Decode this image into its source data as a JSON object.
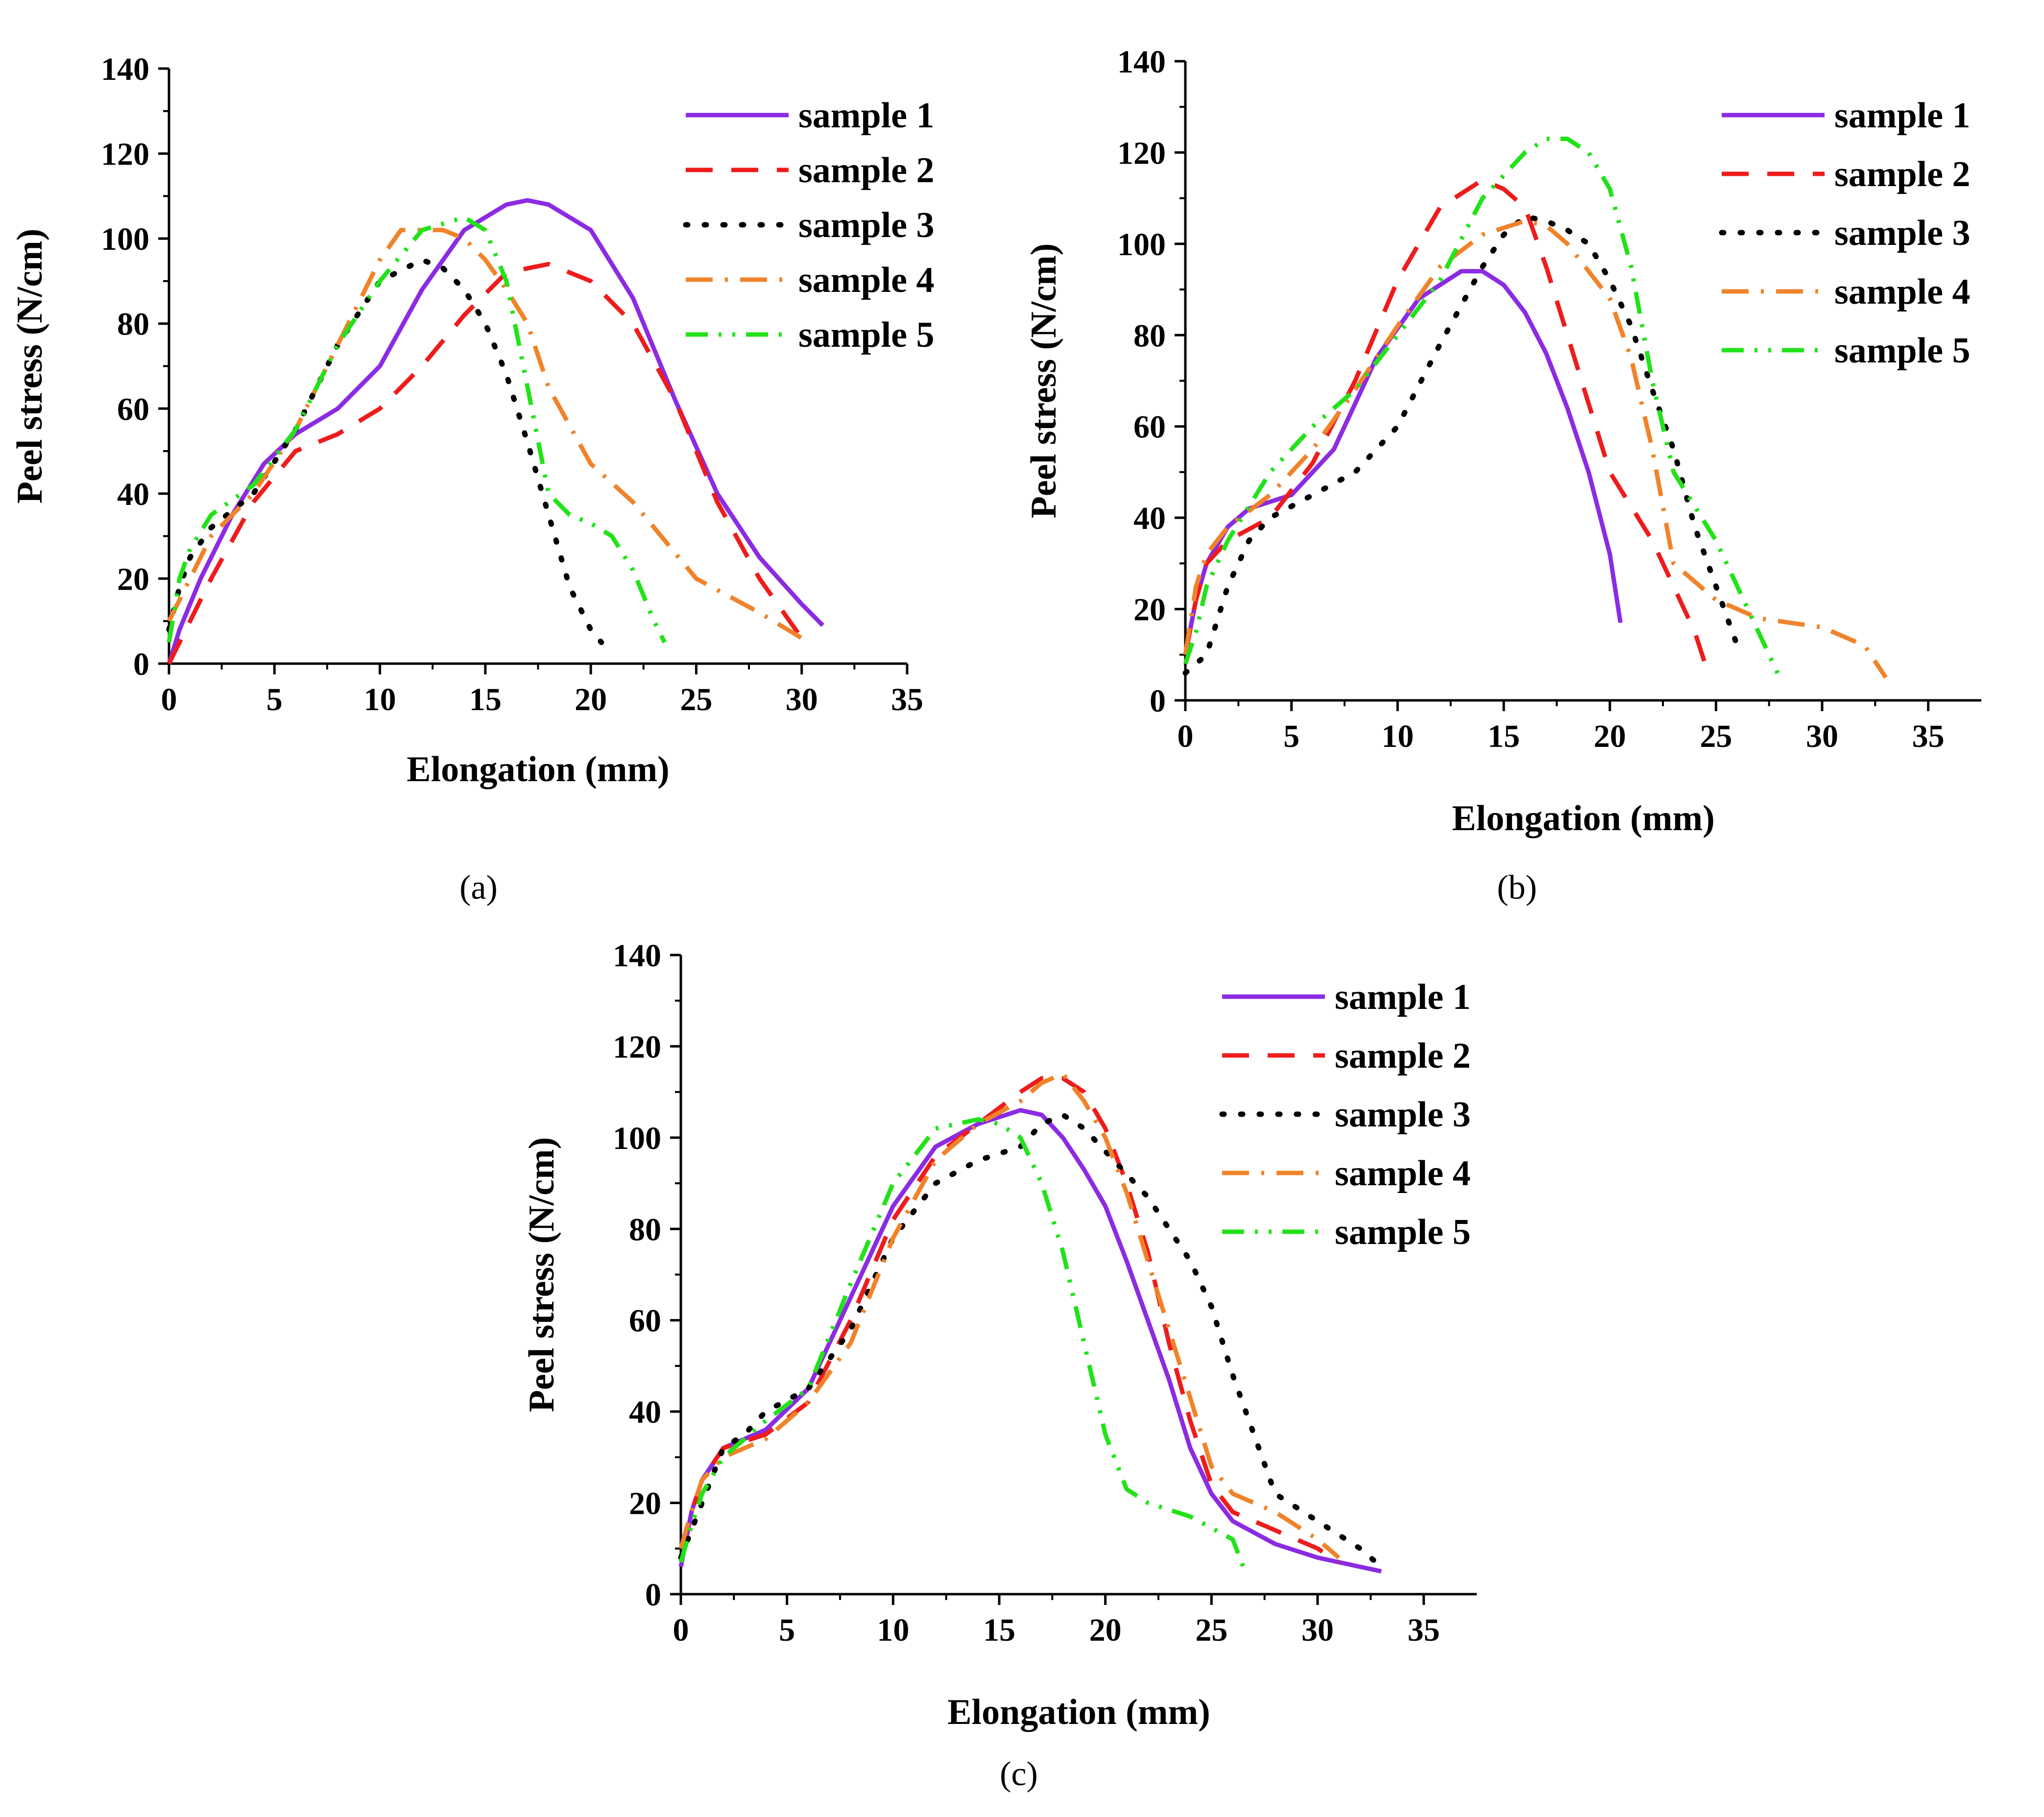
{
  "series_styles": [
    {
      "color": "#8b2be2",
      "dash": "none",
      "stroke_name": "solid"
    },
    {
      "color": "#ee1c1c",
      "dash": "dashed",
      "stroke_name": "dash"
    },
    {
      "color": "#000000",
      "dash": "dotted",
      "stroke_name": "dot"
    },
    {
      "color": "#f0832a",
      "dash": "dashdot",
      "stroke_name": "dash-dot"
    },
    {
      "color": "#22e21a",
      "dash": "dashdotdot",
      "stroke_name": "dash-dot-dot"
    }
  ],
  "chart_data": [
    {
      "type": "line",
      "panel_caption": "(a)",
      "xlabel": "Elongation (mm)",
      "ylabel": "Peel stress (N/cm)",
      "xlim": [
        0,
        35
      ],
      "ylim": [
        0,
        140
      ],
      "xticks": [
        0,
        5,
        10,
        15,
        20,
        25,
        30,
        35
      ],
      "yticks": [
        0,
        20,
        40,
        60,
        80,
        100,
        120,
        140
      ],
      "grid": false,
      "legend_position": "top-right",
      "series": [
        {
          "name": "sample 1",
          "x": [
            0,
            0.5,
            1.5,
            3,
            4.5,
            6,
            8,
            10,
            12,
            14,
            16,
            17,
            18,
            20,
            22,
            24,
            26,
            28,
            30,
            31
          ],
          "y": [
            0,
            8,
            20,
            35,
            47,
            54,
            60,
            70,
            88,
            102,
            108,
            109,
            108,
            102,
            86,
            62,
            40,
            25,
            14,
            9
          ]
        },
        {
          "name": "sample 2",
          "x": [
            0,
            1,
            2,
            4,
            6,
            8,
            10,
            12,
            14,
            16,
            18,
            20,
            22,
            24,
            26,
            28,
            30
          ],
          "y": [
            0,
            10,
            20,
            38,
            50,
            54,
            60,
            70,
            82,
            92,
            94,
            90,
            80,
            62,
            38,
            20,
            6
          ]
        },
        {
          "name": "sample 3",
          "x": [
            0,
            0.5,
            1,
            2,
            4,
            6,
            8,
            10,
            12,
            13,
            14,
            15,
            16,
            17,
            18,
            19,
            20,
            20.5
          ],
          "y": [
            8,
            18,
            25,
            32,
            40,
            55,
            75,
            90,
            95,
            93,
            88,
            80,
            68,
            52,
            35,
            18,
            8,
            5
          ]
        },
        {
          "name": "sample 4",
          "x": [
            0,
            1,
            2,
            4,
            6,
            8,
            10,
            11,
            13,
            14,
            15,
            16,
            17,
            18,
            20,
            22,
            25,
            28,
            30
          ],
          "y": [
            10,
            20,
            30,
            40,
            55,
            75,
            95,
            102,
            102,
            100,
            95,
            88,
            80,
            65,
            47,
            38,
            20,
            12,
            6
          ]
        },
        {
          "name": "sample 5",
          "x": [
            0,
            0.5,
            1,
            2,
            4,
            6,
            8,
            10,
            12,
            14,
            15,
            16,
            17,
            18,
            19,
            20,
            21,
            22,
            23,
            23.5
          ],
          "y": [
            5,
            20,
            27,
            35,
            42,
            55,
            75,
            90,
            102,
            105,
            102,
            90,
            65,
            40,
            35,
            33,
            30,
            22,
            10,
            5
          ]
        }
      ]
    },
    {
      "type": "line",
      "panel_caption": "(b)",
      "xlabel": "Elongation (mm)",
      "ylabel": "Peel stress (N/cm)",
      "xlim": [
        0,
        37.5
      ],
      "ylim": [
        0,
        140
      ],
      "xticks": [
        0,
        5,
        10,
        15,
        20,
        25,
        30,
        35
      ],
      "yticks": [
        0,
        20,
        40,
        60,
        80,
        100,
        120,
        140
      ],
      "grid": false,
      "legend_position": "top-right",
      "series": [
        {
          "name": "sample 1",
          "x": [
            0,
            0.5,
            1,
            2,
            3,
            5,
            7,
            9,
            11,
            13,
            14,
            15,
            16,
            17,
            18,
            19,
            20,
            20.5
          ],
          "y": [
            10,
            22,
            30,
            38,
            42,
            45,
            55,
            75,
            88,
            94,
            94,
            91,
            85,
            76,
            64,
            50,
            32,
            17
          ]
        },
        {
          "name": "sample 2",
          "x": [
            0,
            0.5,
            1,
            2,
            4,
            6,
            8,
            10,
            12,
            14,
            15,
            16,
            17,
            18,
            19,
            20,
            22,
            24,
            24.7
          ],
          "y": [
            10,
            22,
            30,
            35,
            40,
            52,
            70,
            92,
            108,
            114,
            112,
            108,
            95,
            80,
            65,
            50,
            35,
            15,
            5
          ]
        },
        {
          "name": "sample 3",
          "x": [
            0,
            1,
            2,
            3,
            4,
            6,
            8,
            10,
            12,
            14,
            15,
            16,
            17,
            18,
            19,
            20,
            21,
            22,
            23,
            24,
            25,
            26
          ],
          "y": [
            6,
            10,
            25,
            35,
            40,
            45,
            50,
            60,
            78,
            95,
            102,
            106,
            105,
            103,
            100,
            92,
            82,
            68,
            55,
            38,
            25,
            12
          ]
        },
        {
          "name": "sample 4",
          "x": [
            0,
            0.5,
            1,
            2,
            4,
            6,
            8,
            10,
            12,
            14,
            16,
            17,
            18,
            20,
            21,
            22,
            23,
            25,
            27,
            30,
            32,
            33
          ],
          "y": [
            10,
            25,
            32,
            38,
            45,
            55,
            68,
            82,
            95,
            102,
            105,
            104,
            100,
            88,
            75,
            55,
            30,
            22,
            18,
            16,
            12,
            5
          ]
        },
        {
          "name": "sample 5",
          "x": [
            0,
            0.5,
            1,
            2,
            4,
            6,
            8,
            10,
            12,
            14,
            16,
            17,
            18,
            19,
            20,
            21,
            22,
            23,
            25,
            27,
            28
          ],
          "y": [
            8,
            15,
            25,
            35,
            50,
            60,
            68,
            80,
            92,
            110,
            120,
            123,
            123,
            120,
            112,
            95,
            70,
            50,
            35,
            15,
            5
          ]
        }
      ]
    },
    {
      "type": "line",
      "panel_caption": "(c)",
      "xlabel": "Elongation (mm)",
      "ylabel": "Peel stress (N/cm)",
      "xlim": [
        0,
        37.5
      ],
      "ylim": [
        0,
        140
      ],
      "xticks": [
        0,
        5,
        10,
        15,
        20,
        25,
        30,
        35
      ],
      "yticks": [
        0,
        20,
        40,
        60,
        80,
        100,
        120,
        140
      ],
      "grid": false,
      "legend_position": "top-right",
      "series": [
        {
          "name": "sample 1",
          "x": [
            0,
            0.5,
            1,
            2,
            4,
            6,
            8,
            10,
            12,
            14,
            16,
            17,
            18,
            19,
            20,
            21,
            22,
            23,
            24,
            25,
            26,
            28,
            30,
            32,
            33
          ],
          "y": [
            6,
            18,
            25,
            32,
            36,
            45,
            65,
            85,
            98,
            103,
            106,
            105,
            100,
            93,
            85,
            73,
            60,
            47,
            32,
            22,
            16,
            11,
            8,
            6,
            5
          ]
        },
        {
          "name": "sample 2",
          "x": [
            0,
            0.5,
            1,
            2,
            4,
            6,
            8,
            10,
            12,
            14,
            16,
            17,
            18,
            19,
            20,
            21,
            22,
            23,
            24,
            25,
            26,
            28,
            30,
            31
          ],
          "y": [
            10,
            18,
            25,
            32,
            35,
            42,
            60,
            82,
            96,
            103,
            110,
            113,
            113,
            110,
            102,
            90,
            75,
            55,
            38,
            24,
            18,
            14,
            10,
            7
          ]
        },
        {
          "name": "sample 3",
          "x": [
            0,
            1,
            2,
            3,
            4,
            6,
            8,
            10,
            12,
            14,
            16,
            17,
            18,
            19,
            20,
            21,
            22,
            23,
            24,
            25,
            26,
            27,
            28,
            30,
            32,
            33
          ],
          "y": [
            8,
            20,
            32,
            35,
            40,
            45,
            58,
            78,
            90,
            95,
            98,
            103,
            105,
            102,
            97,
            92,
            87,
            80,
            73,
            63,
            48,
            35,
            22,
            16,
            10,
            6
          ]
        },
        {
          "name": "sample 4",
          "x": [
            0,
            0.5,
            1,
            2,
            4,
            6,
            8,
            10,
            12,
            14,
            16,
            17,
            18,
            19,
            20,
            21,
            22,
            23,
            24,
            25,
            26,
            28,
            30,
            31
          ],
          "y": [
            10,
            18,
            25,
            30,
            34,
            42,
            55,
            78,
            95,
            103,
            108,
            112,
            114,
            108,
            100,
            88,
            73,
            58,
            43,
            28,
            22,
            18,
            12,
            8
          ]
        },
        {
          "name": "sample 5",
          "x": [
            0,
            0.5,
            1,
            2,
            4,
            6,
            8,
            10,
            12,
            14,
            15,
            16,
            17,
            18,
            19,
            20,
            21,
            22,
            24,
            26,
            26.5
          ],
          "y": [
            7,
            15,
            22,
            30,
            38,
            45,
            68,
            90,
            102,
            104,
            103,
            100,
            90,
            75,
            55,
            35,
            23,
            20,
            17,
            12,
            6
          ]
        }
      ]
    }
  ]
}
